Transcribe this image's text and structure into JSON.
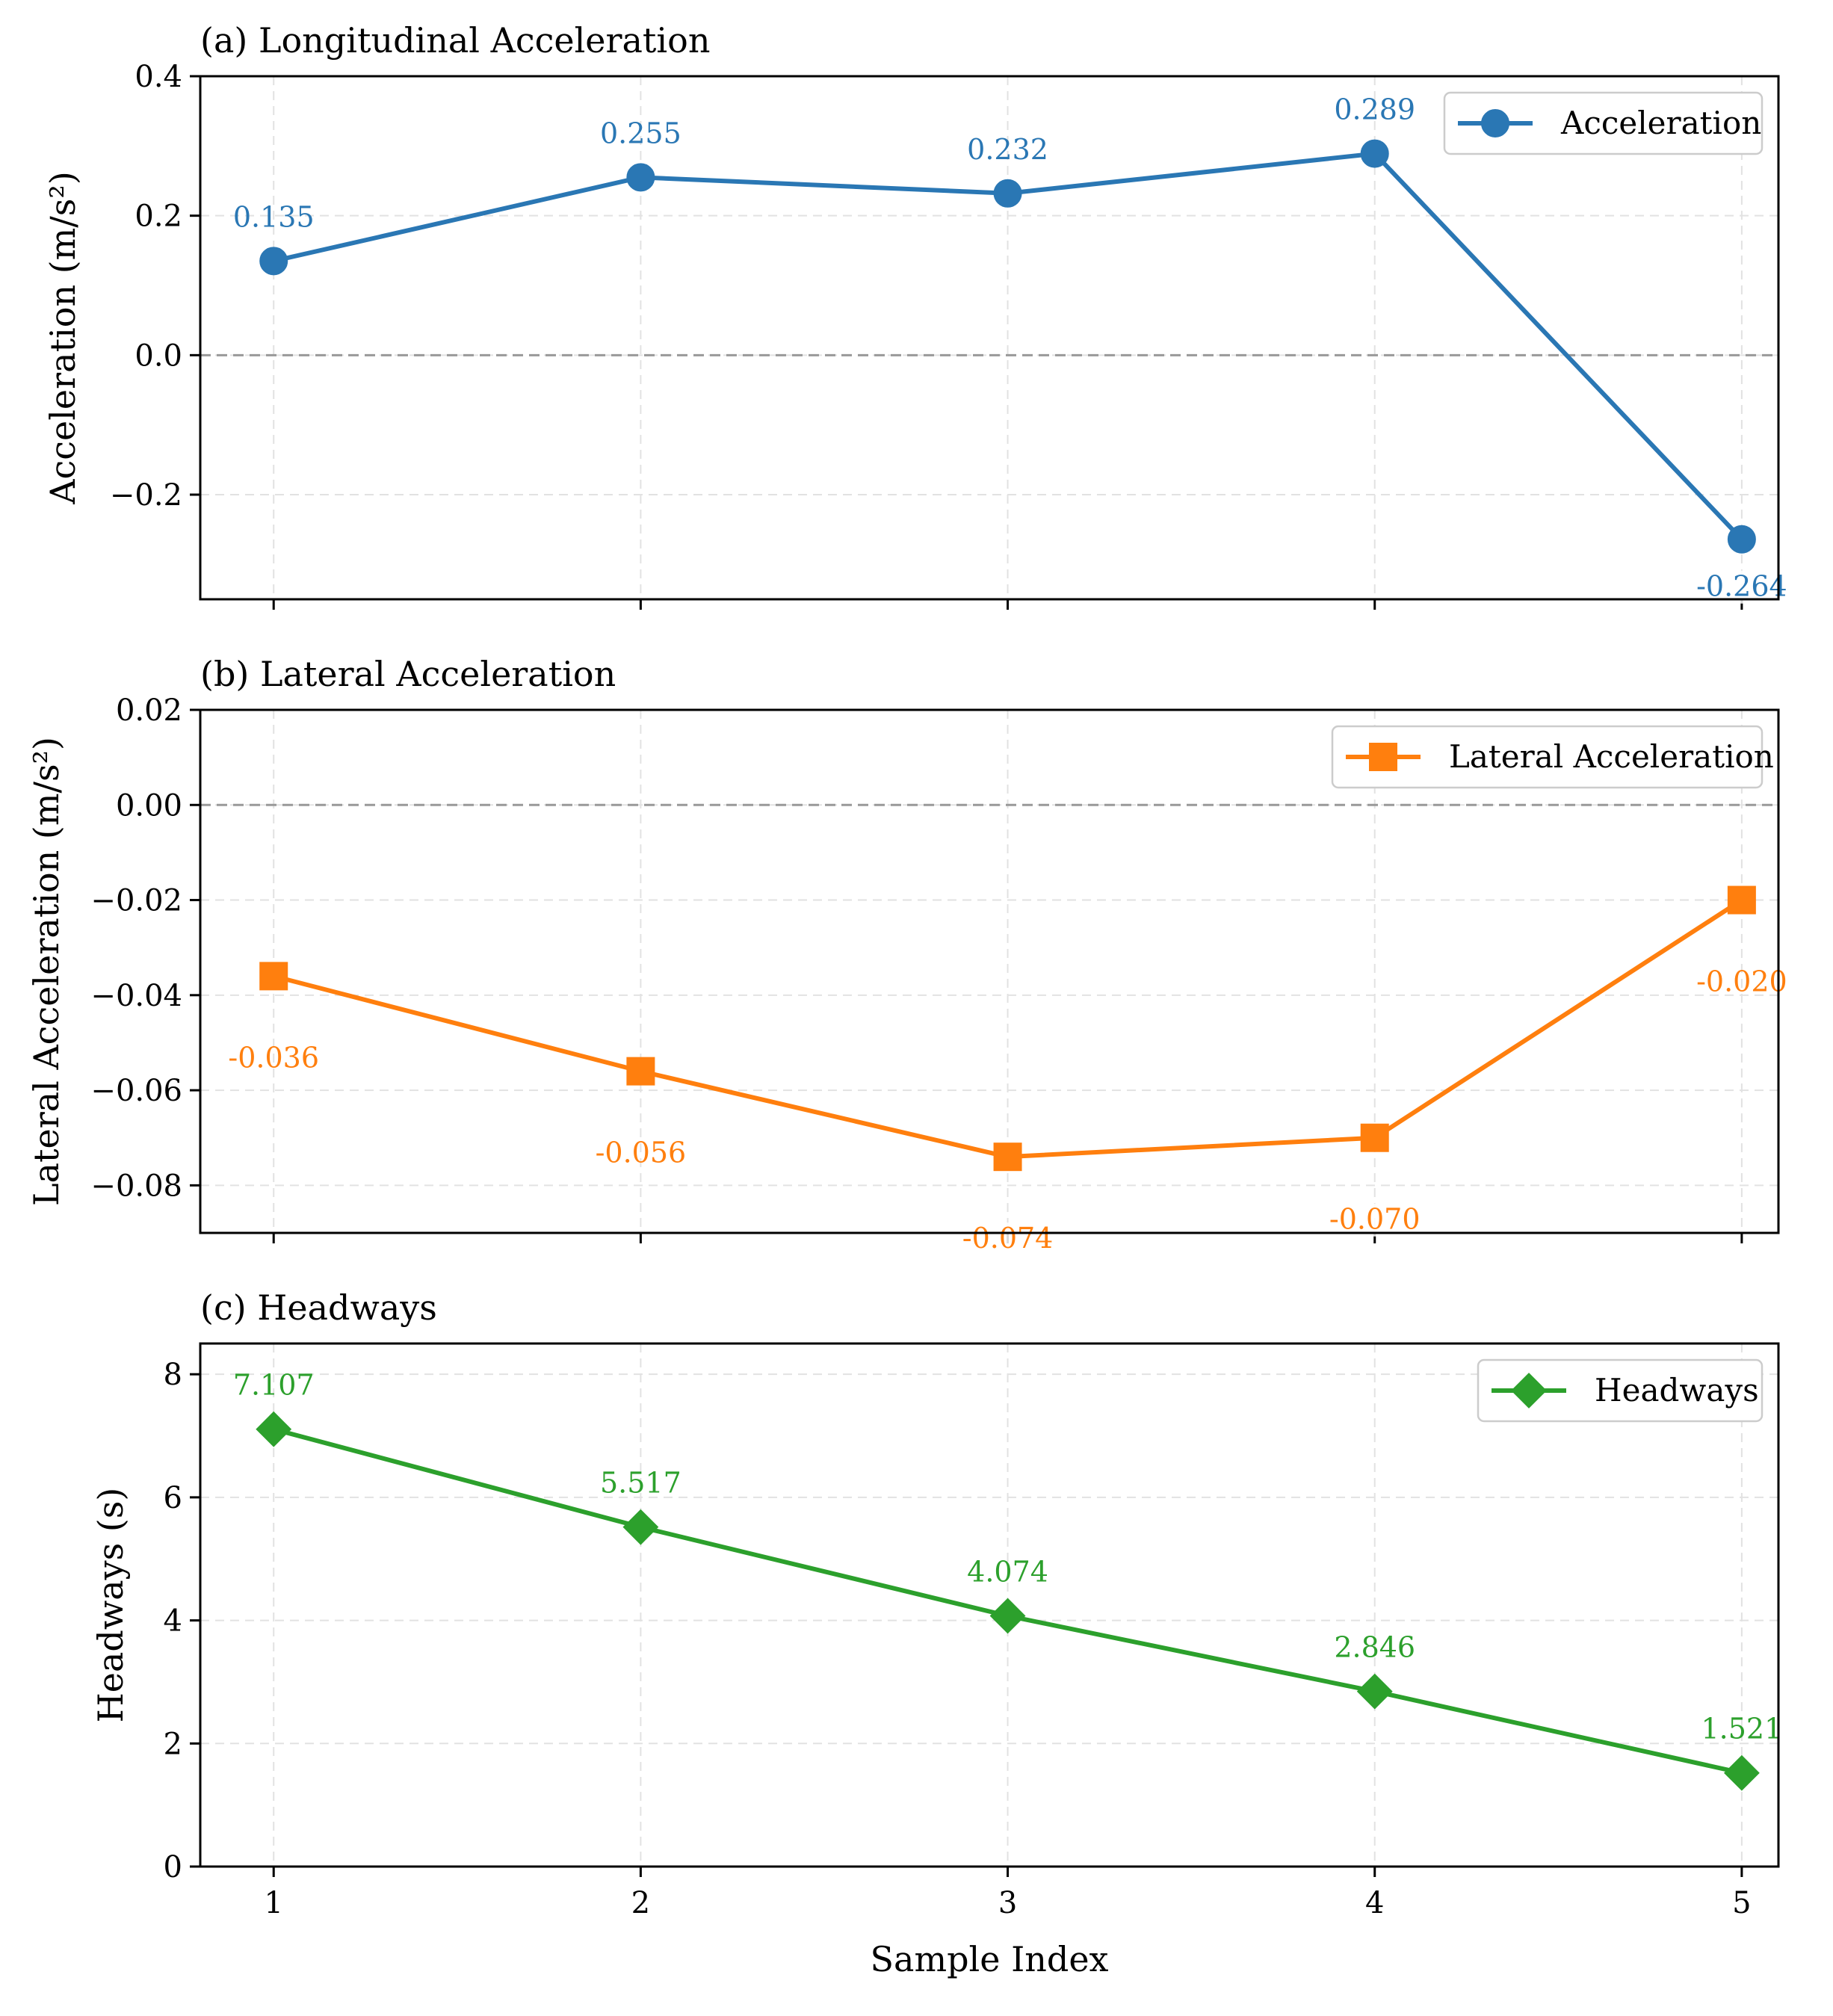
{
  "chart_data": [
    {
      "type": "line",
      "title": "(a) Longitudinal Acceleration",
      "xlabel": "",
      "ylabel": "Acceleration (m/s²)",
      "x": [
        1,
        2,
        3,
        4,
        5
      ],
      "xticks": [
        "1",
        "2",
        "3",
        "4",
        "5"
      ],
      "xlim": [
        0.8,
        5.1
      ],
      "ylim": [
        -0.35,
        0.4
      ],
      "yticks": [
        -0.2,
        0.0,
        0.2,
        0.4
      ],
      "ytick_labels": [
        "−0.2",
        "0.0",
        "0.2",
        "0.4"
      ],
      "zero_line": true,
      "grid": true,
      "marker": "circle",
      "color": "#2a77b4",
      "legend_position": "upper right",
      "series": [
        {
          "name": "Acceleration",
          "values": [
            0.135,
            0.255,
            0.232,
            0.289,
            -0.264
          ],
          "labels": [
            "0.135",
            "0.255",
            "0.232",
            "0.289",
            "-0.264"
          ]
        }
      ]
    },
    {
      "type": "line",
      "title": "(b) Lateral Acceleration",
      "xlabel": "",
      "ylabel": "Lateral Acceleration (m/s²)",
      "x": [
        1,
        2,
        3,
        4,
        5
      ],
      "xticks": [
        "1",
        "2",
        "3",
        "4",
        "5"
      ],
      "xlim": [
        0.8,
        5.1
      ],
      "ylim": [
        -0.09,
        0.02
      ],
      "yticks": [
        -0.08,
        -0.06,
        -0.04,
        -0.02,
        0.0,
        0.02
      ],
      "ytick_labels": [
        "−0.08",
        "−0.06",
        "−0.04",
        "−0.02",
        "0.00",
        "0.02"
      ],
      "zero_line": true,
      "grid": true,
      "marker": "square",
      "color": "#ff7f0e",
      "legend_position": "upper right",
      "series": [
        {
          "name": "Lateral Acceleration",
          "values": [
            -0.036,
            -0.056,
            -0.074,
            -0.07,
            -0.02
          ],
          "labels": [
            "-0.036",
            "-0.056",
            "-0.074",
            "-0.070",
            "-0.020"
          ]
        }
      ]
    },
    {
      "type": "line",
      "title": "(c) Headways",
      "xlabel": "Sample Index",
      "ylabel": "Headways (s)",
      "x": [
        1,
        2,
        3,
        4,
        5
      ],
      "xticks": [
        "1",
        "2",
        "3",
        "4",
        "5"
      ],
      "xlim": [
        0.8,
        5.1
      ],
      "ylim": [
        0,
        8.5
      ],
      "yticks": [
        0,
        2,
        4,
        6,
        8
      ],
      "ytick_labels": [
        "0",
        "2",
        "4",
        "6",
        "8"
      ],
      "zero_line": false,
      "grid": true,
      "marker": "diamond",
      "color": "#2ca02c",
      "legend_position": "upper right",
      "series": [
        {
          "name": "Headways",
          "values": [
            7.107,
            5.517,
            4.074,
            2.846,
            1.521
          ],
          "labels": [
            "7.107",
            "5.517",
            "4.074",
            "2.846",
            "1.521"
          ]
        }
      ]
    }
  ]
}
